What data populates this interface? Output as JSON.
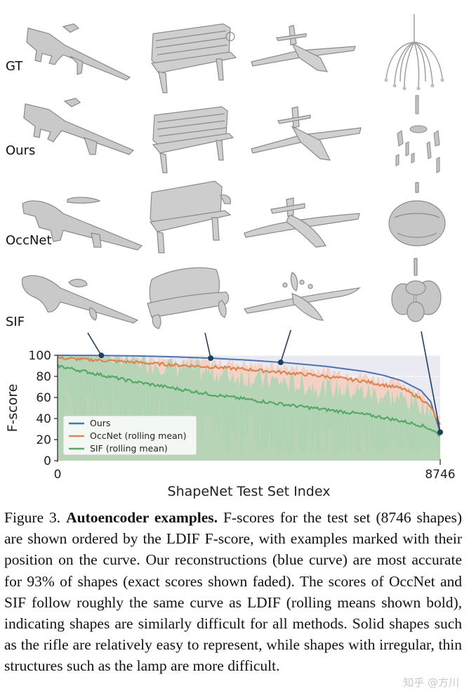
{
  "figure": {
    "row_labels": [
      "GT",
      "Ours",
      "OccNet",
      "SIF"
    ],
    "caption": {
      "prefix": "Figure 3.",
      "title": "Autoencoder examples.",
      "body": "F-scores for the test set (8746 shapes) are shown ordered by the LDIF F-score, with examples marked with their position on the curve. Our reconstructions (blue curve) are most accurate for 93% of shapes (exact scores shown faded). The scores of OccNet and SIF follow roughly the same curve as LDIF (rolling means shown bold), indicating shapes are similarly difficult for all methods. Solid shapes such as the rifle are relatively easy to represent, while shapes with irregular, thin structures such as the lamp are more difficult."
    },
    "watermark": "知乎 @方川"
  },
  "chart_data": {
    "type": "line",
    "xlabel": "ShapeNet Test Set Index",
    "ylabel": "F-score",
    "xlim": [
      0,
      8746
    ],
    "ylim": [
      0,
      100
    ],
    "x_ticks": [
      "0",
      "8746"
    ],
    "y_ticks": [
      "0",
      "20",
      "40",
      "60",
      "80",
      "100"
    ],
    "legend_position": "lower-left",
    "series": [
      {
        "name": "Ours",
        "color": "#4c72b0",
        "x": [
          0,
          874,
          1749,
          2624,
          3498,
          4373,
          5248,
          6122,
          6997,
          7434,
          7872,
          8309,
          8528,
          8746
        ],
        "y": [
          100,
          99.9,
          99.5,
          98.6,
          97.3,
          95.4,
          92.9,
          89.6,
          84.8,
          81.2,
          75.8,
          66.5,
          56.0,
          27.0
        ]
      },
      {
        "name": "OccNet (rolling mean)",
        "color": "#dd8452",
        "x": [
          0,
          874,
          1749,
          2624,
          3498,
          4373,
          5248,
          6122,
          6997,
          7434,
          7872,
          8309,
          8528,
          8746
        ],
        "y": [
          97.5,
          95.5,
          93.5,
          91.0,
          89.0,
          86.5,
          83.5,
          80.0,
          75.5,
          72.0,
          68.5,
          59.0,
          51.0,
          33.0
        ]
      },
      {
        "name": "SIF (rolling mean)",
        "color": "#55a868",
        "x": [
          0,
          874,
          1749,
          2624,
          3498,
          4373,
          5248,
          6122,
          6997,
          7434,
          7872,
          8309,
          8528,
          8746
        ],
        "y": [
          90.0,
          82.5,
          75.0,
          69.0,
          63.0,
          58.0,
          53.0,
          48.5,
          44.0,
          41.0,
          37.5,
          33.5,
          30.0,
          24.0
        ]
      }
    ],
    "example_markers": [
      {
        "name": "rifle",
        "x": 1000,
        "y": 99.9
      },
      {
        "name": "bench",
        "x": 3500,
        "y": 97.3
      },
      {
        "name": "airplane",
        "x": 5100,
        "y": 93.3
      },
      {
        "name": "lamp",
        "x": 8746,
        "y": 27.0
      }
    ]
  },
  "colors": {
    "plot_background": "#eaeaf2",
    "ours_band": "#f4c9b6",
    "sif_band": "#a9d5b1",
    "marker": "#1f3f62"
  }
}
